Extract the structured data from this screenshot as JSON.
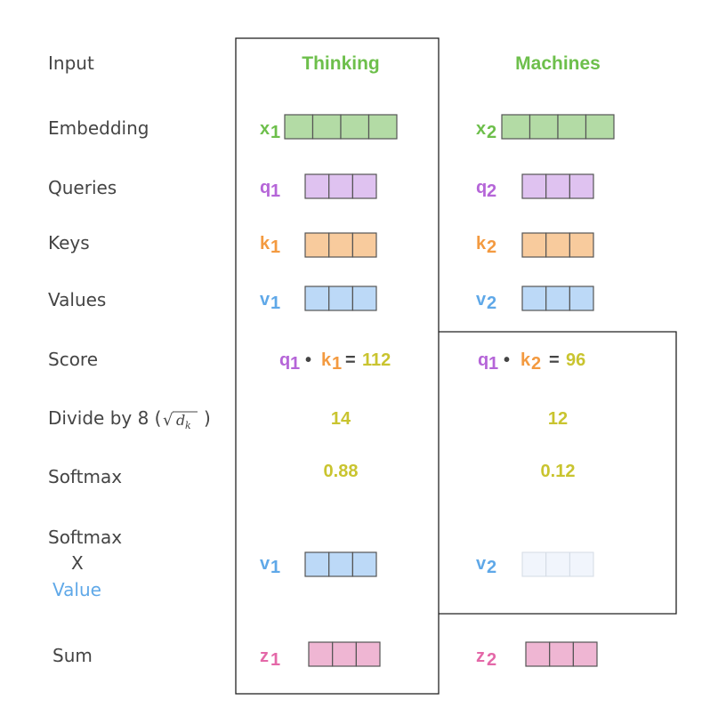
{
  "row_labels": {
    "input": "Input",
    "embedding": "Embedding",
    "queries": "Queries",
    "keys": "Keys",
    "values": "Values",
    "score": "Score",
    "divide_prefix": "Divide by 8 (",
    "divide_sqrt": "√",
    "divide_var": "d",
    "divide_sub": "k",
    "divide_suffix": ")",
    "softmax": "Softmax",
    "softmax_x_value_1": "Softmax",
    "softmax_x_value_2": "X",
    "softmax_x_value_3": "Value",
    "sum": "Sum"
  },
  "words": {
    "w1": "Thinking",
    "w2": "Machines"
  },
  "symbols": {
    "x1": "x",
    "x1_sub": "1",
    "x2": "x",
    "x2_sub": "2",
    "q1": "q",
    "q1_sub": "1",
    "q2": "q",
    "q2_sub": "2",
    "k1": "k",
    "k1_sub": "1",
    "k2": "k",
    "k2_sub": "2",
    "v1": "v",
    "v1_sub": "1",
    "v2": "v",
    "v2_sub": "2",
    "z1": "z",
    "z1_sub": "1",
    "z2": "z",
    "z2_sub": "2"
  },
  "score": {
    "s1_q": "q",
    "s1_q_sub": "1",
    "s1_dot": "•",
    "s1_k": "k",
    "s1_k_sub": "1",
    "s1_eq": "=",
    "s1_val": "112",
    "s2_q": "q",
    "s2_q_sub": "1",
    "s2_dot": "•",
    "s2_k": "k",
    "s2_k_sub": "2",
    "s2_eq": "=",
    "s2_val": "96"
  },
  "divided": {
    "d1": "14",
    "d2": "12"
  },
  "softmax": {
    "sm1": "0.88",
    "sm2": "0.12"
  },
  "colors": {
    "green_text": "#6dbf4b",
    "green_fill": "#b3dba5",
    "purple_text": "#b565d8",
    "purple_fill": "#dfc2f0",
    "orange_text": "#f39a40",
    "orange_fill": "#f8cb9d",
    "blue_text": "#5fa8e8",
    "blue_fill": "#bcd9f7",
    "blue_faded_fill": "#f1f5fc",
    "pink_text": "#e468a8",
    "pink_fill": "#efb6d3",
    "yellow_text": "#c9c42f",
    "label_gray": "#444444",
    "value_blue": "#5fa8e8"
  }
}
